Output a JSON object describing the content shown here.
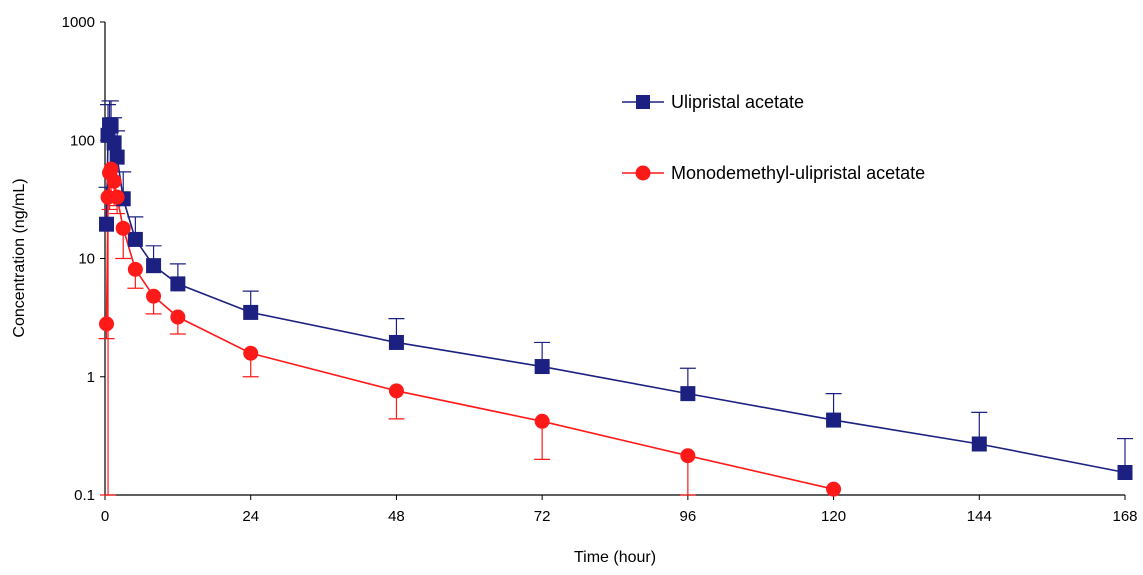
{
  "chart_data": {
    "type": "line",
    "xlabel": "Time (hour)",
    "ylabel": "Concentration (ng/mL)",
    "x_scale": "linear",
    "y_scale": "log",
    "xlim": [
      0,
      168
    ],
    "ylim": [
      0.1,
      1000
    ],
    "x_ticks": [
      0,
      24,
      48,
      72,
      96,
      120,
      144,
      168
    ],
    "y_ticks": [
      0.1,
      1,
      10,
      100,
      1000
    ],
    "y_tick_labels": [
      "0.1",
      "1",
      "10",
      "100",
      "1000"
    ],
    "grid": false,
    "legend_position": "top-right",
    "series": [
      {
        "name": "Ulipristal acetate",
        "color": "#1c2080",
        "marker": "square",
        "points": [
          {
            "x": 0.25,
            "y": 19.5,
            "err_up": 40
          },
          {
            "x": 0.5,
            "y": 110,
            "err_up": 200
          },
          {
            "x": 0.75,
            "y": 135,
            "err_up": 215
          },
          {
            "x": 1,
            "y": 132,
            "err_up": 215
          },
          {
            "x": 1.5,
            "y": 95,
            "err_up": 155
          },
          {
            "x": 2,
            "y": 72,
            "err_up": 120
          },
          {
            "x": 3,
            "y": 32,
            "err_up": 54
          },
          {
            "x": 5,
            "y": 14.5,
            "err_up": 22.5
          },
          {
            "x": 8,
            "y": 8.7,
            "err_up": 12.8
          },
          {
            "x": 12,
            "y": 6.1,
            "err_up": 9
          },
          {
            "x": 24,
            "y": 3.5,
            "err_up": 5.3
          },
          {
            "x": 48,
            "y": 1.95,
            "err_up": 3.1
          },
          {
            "x": 72,
            "y": 1.22,
            "err_up": 1.95
          },
          {
            "x": 96,
            "y": 0.72,
            "err_up": 1.18
          },
          {
            "x": 120,
            "y": 0.43,
            "err_up": 0.72
          },
          {
            "x": 144,
            "y": 0.27,
            "err_up": 0.5
          },
          {
            "x": 168,
            "y": 0.155,
            "err_up": 0.3
          }
        ]
      },
      {
        "name": "Monodemethyl-ulipristal acetate",
        "color": "#ff1a1a",
        "marker": "circle",
        "points": [
          {
            "x": 0.25,
            "y": 2.8,
            "err_down": 2.1
          },
          {
            "x": 0.5,
            "y": 33,
            "err_down": 0.1
          },
          {
            "x": 0.75,
            "y": 53,
            "err_down": 26
          },
          {
            "x": 1,
            "y": 57,
            "err_down": 33
          },
          {
            "x": 1.5,
            "y": 45,
            "err_down": 28
          },
          {
            "x": 2,
            "y": 33,
            "err_down": 24
          },
          {
            "x": 3,
            "y": 18,
            "err_down": 10
          },
          {
            "x": 5,
            "y": 8.1,
            "err_down": 5.6
          },
          {
            "x": 8,
            "y": 4.8,
            "err_down": 3.4
          },
          {
            "x": 12,
            "y": 3.2,
            "err_down": 2.3
          },
          {
            "x": 24,
            "y": 1.58,
            "err_down": 1.0
          },
          {
            "x": 48,
            "y": 0.76,
            "err_down": 0.44
          },
          {
            "x": 72,
            "y": 0.42,
            "err_down": 0.2
          },
          {
            "x": 96,
            "y": 0.215,
            "err_down": 0.1
          },
          {
            "x": 120,
            "y": 0.112
          }
        ]
      }
    ]
  }
}
